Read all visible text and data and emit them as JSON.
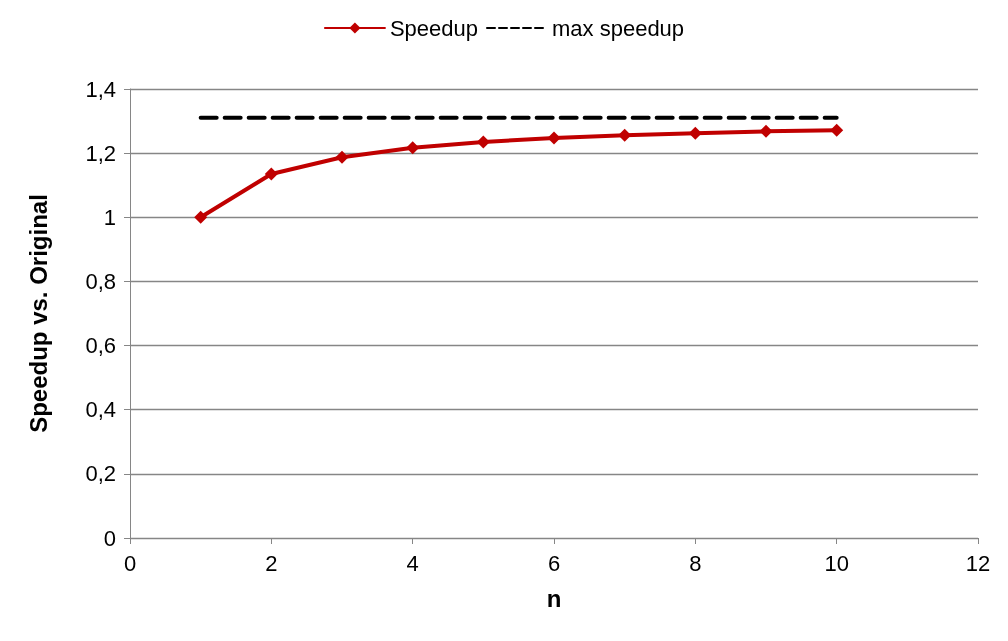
{
  "chart_data": {
    "type": "line",
    "xlabel": "n",
    "ylabel": "Speedup vs. Original",
    "x": [
      1,
      2,
      3,
      4,
      5,
      6,
      7,
      8,
      9,
      10
    ],
    "series": [
      {
        "name": "Speedup",
        "color": "#c00000",
        "values": [
          1.0,
          1.135,
          1.187,
          1.217,
          1.235,
          1.247,
          1.256,
          1.262,
          1.268,
          1.271
        ],
        "marker": "diamond",
        "line_style": "solid"
      },
      {
        "name": "max speedup",
        "color": "#000000",
        "x": [
          1,
          10
        ],
        "values": [
          1.31,
          1.31
        ],
        "marker": "none",
        "line_style": "dashed"
      }
    ],
    "xlim": [
      0,
      12
    ],
    "xticks": [
      0,
      2,
      4,
      6,
      8,
      10,
      12
    ],
    "ylim": [
      0,
      1.4
    ],
    "yticks": [
      0,
      {
        "value": 0.2,
        "label": "0,2"
      },
      {
        "value": 0.4,
        "label": "0,4"
      },
      {
        "value": 0.6,
        "label": "0,6"
      },
      {
        "value": 0.8,
        "label": "0,8"
      },
      1,
      {
        "value": 1.2,
        "label": "1,2"
      },
      {
        "value": 1.4,
        "label": "1,4"
      }
    ],
    "grid": "y",
    "legend": "top"
  }
}
